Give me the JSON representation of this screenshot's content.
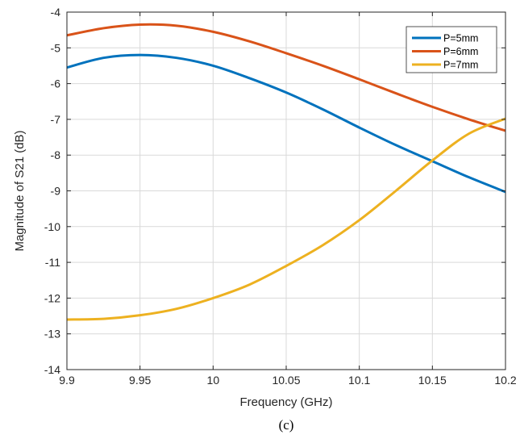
{
  "chart_data": {
    "type": "line",
    "xlabel": "Frequency (GHz)",
    "ylabel": "Magnitude of S21 (dB)",
    "caption": "(c)",
    "xlim": [
      9.9,
      10.2
    ],
    "ylim": [
      -14,
      -4
    ],
    "x_ticks": [
      "9.9",
      "9.95",
      "10",
      "10.05",
      "10.1",
      "10.15",
      "10.2"
    ],
    "y_ticks": [
      "-4",
      "-5",
      "-6",
      "-7",
      "-8",
      "-9",
      "-10",
      "-11",
      "-12",
      "-13",
      "-14"
    ],
    "grid": true,
    "legend_position": "top-right",
    "series": [
      {
        "name": "P=5mm",
        "color": "#0072BD",
        "x": [
          9.9,
          9.925,
          9.95,
          9.975,
          10.0,
          10.025,
          10.05,
          10.075,
          10.1,
          10.125,
          10.15,
          10.175,
          10.2
        ],
        "y": [
          -5.55,
          -5.28,
          -5.2,
          -5.28,
          -5.5,
          -5.85,
          -6.25,
          -6.72,
          -7.23,
          -7.72,
          -8.17,
          -8.62,
          -9.03
        ]
      },
      {
        "name": "P=6mm",
        "color": "#D95319",
        "x": [
          9.9,
          9.925,
          9.95,
          9.975,
          10.0,
          10.025,
          10.05,
          10.075,
          10.1,
          10.125,
          10.15,
          10.175,
          10.2
        ],
        "y": [
          -4.65,
          -4.45,
          -4.35,
          -4.38,
          -4.55,
          -4.82,
          -5.15,
          -5.5,
          -5.88,
          -6.27,
          -6.65,
          -7.0,
          -7.32
        ]
      },
      {
        "name": "P=7mm",
        "color": "#EDB120",
        "x": [
          9.9,
          9.925,
          9.95,
          9.975,
          10.0,
          10.025,
          10.05,
          10.075,
          10.1,
          10.125,
          10.15,
          10.175,
          10.2
        ],
        "y": [
          -12.6,
          -12.58,
          -12.48,
          -12.3,
          -12.0,
          -11.62,
          -11.1,
          -10.52,
          -9.82,
          -9.0,
          -8.15,
          -7.4,
          -6.98
        ]
      }
    ]
  }
}
